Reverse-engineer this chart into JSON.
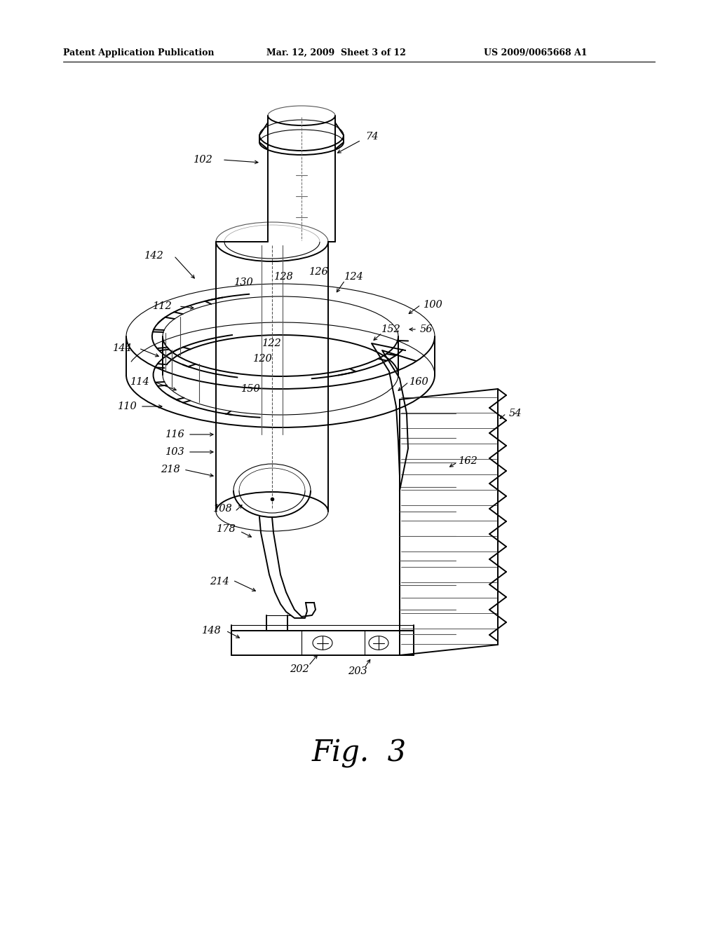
{
  "header_left": "Patent Application Publication",
  "header_mid": "Mar. 12, 2009  Sheet 3 of 12",
  "header_right": "US 2009/0065668 A1",
  "fig_label": "Fig.  3",
  "background_color": "#ffffff",
  "line_color": "#000000",
  "lw_main": 1.4,
  "lw_thin": 0.8,
  "lw_hair": 0.5,
  "label_fontsize": 10.5,
  "header_fontsize": 9,
  "fig_fontsize": 30
}
